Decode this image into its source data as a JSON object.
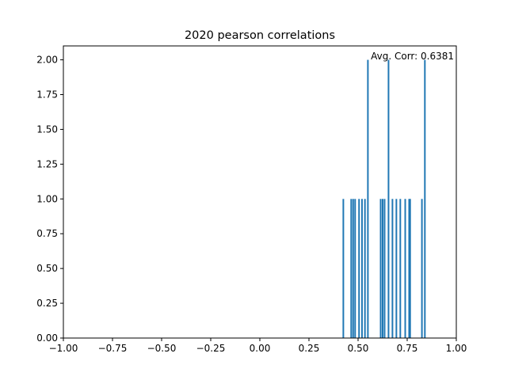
{
  "chart_data": {
    "type": "bar",
    "title": "2020 pearson correlations",
    "xlabel": "",
    "ylabel": "",
    "xlim": [
      -1.0,
      1.0
    ],
    "ylim": [
      0,
      2.1
    ],
    "x_ticks": [
      "−1.00",
      "−0.75",
      "−0.50",
      "−0.25",
      "0.00",
      "0.25",
      "0.50",
      "0.75",
      "1.00"
    ],
    "x_tick_values": [
      -1.0,
      -0.75,
      -0.5,
      -0.25,
      0.0,
      0.25,
      0.5,
      0.75,
      1.0
    ],
    "y_ticks": [
      "0.00",
      "0.25",
      "0.50",
      "0.75",
      "1.00",
      "1.25",
      "1.50",
      "1.75",
      "2.00"
    ],
    "y_tick_values": [
      0.0,
      0.25,
      0.5,
      0.75,
      1.0,
      1.25,
      1.5,
      1.75,
      2.0
    ],
    "bin_width": 0.008,
    "bins": [
      {
        "x": 0.425,
        "count": 1
      },
      {
        "x": 0.465,
        "count": 1
      },
      {
        "x": 0.475,
        "count": 1
      },
      {
        "x": 0.485,
        "count": 1
      },
      {
        "x": 0.505,
        "count": 1
      },
      {
        "x": 0.52,
        "count": 1
      },
      {
        "x": 0.535,
        "count": 1
      },
      {
        "x": 0.55,
        "count": 2
      },
      {
        "x": 0.615,
        "count": 1
      },
      {
        "x": 0.625,
        "count": 1
      },
      {
        "x": 0.635,
        "count": 1
      },
      {
        "x": 0.655,
        "count": 2
      },
      {
        "x": 0.675,
        "count": 1
      },
      {
        "x": 0.695,
        "count": 1
      },
      {
        "x": 0.715,
        "count": 1
      },
      {
        "x": 0.74,
        "count": 1
      },
      {
        "x": 0.76,
        "count": 1
      },
      {
        "x": 0.765,
        "count": 1
      },
      {
        "x": 0.825,
        "count": 1
      },
      {
        "x": 0.84,
        "count": 2
      }
    ],
    "annotation": "Avg. Corr: 0.6381",
    "bar_color": "#1f77b4",
    "grid": false
  }
}
